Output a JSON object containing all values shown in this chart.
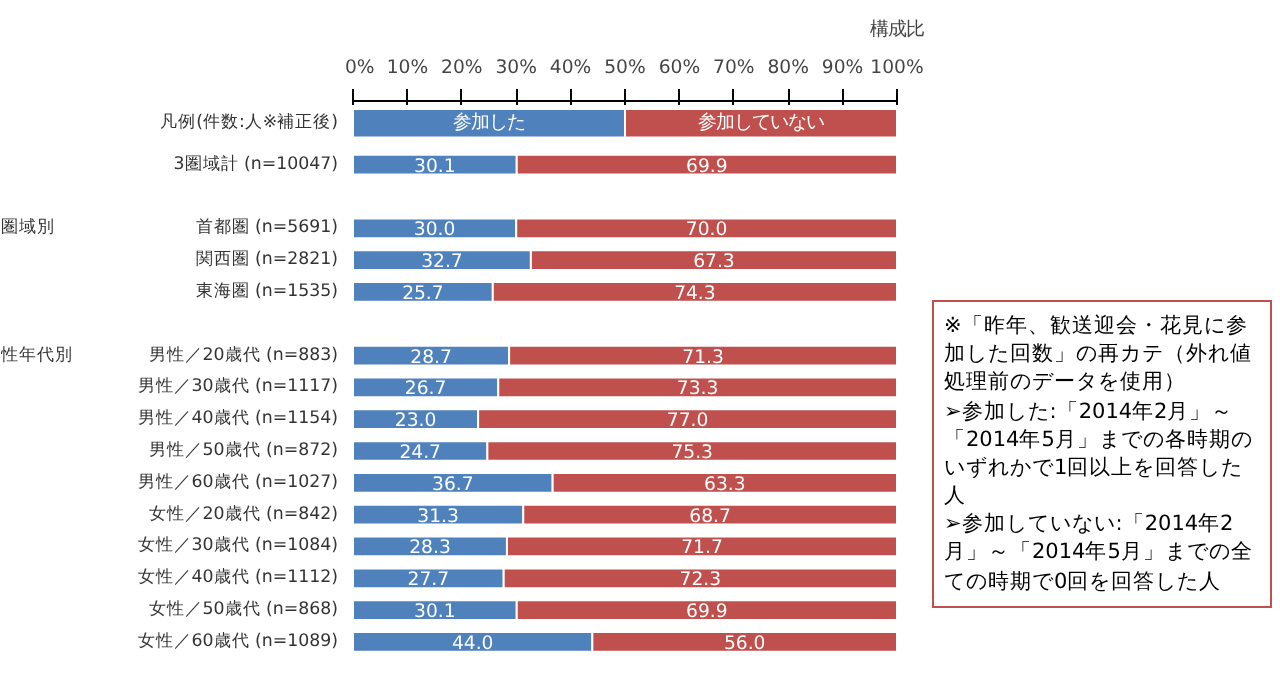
{
  "chart_data": {
    "type": "bar",
    "orientation": "horizontal",
    "stacked": true,
    "xlabel": "構成比",
    "legend_title": "凡例(件数:人※補正後)",
    "legend": "top",
    "categories": [
      "3圏域計 (n=10047)",
      null,
      "首都圏 (n=5691)",
      "関西圏 (n=2821)",
      "東海圏 (n=1535)",
      null,
      "男性／20歳代 (n=883)",
      "男性／30歳代 (n=1117)",
      "男性／40歳代 (n=1154)",
      "男性／50歳代 (n=872)",
      "男性／60歳代 (n=1027)",
      "女性／20歳代 (n=842)",
      "女性／30歳代 (n=1084)",
      "女性／40歳代 (n=1112)",
      "女性／50歳代 (n=868)",
      "女性／60歳代 (n=1089)"
    ],
    "series": [
      {
        "name": "参加した",
        "color": "#4f81bd",
        "values": [
          30.1,
          null,
          30.0,
          32.7,
          25.7,
          null,
          28.7,
          26.7,
          23.0,
          24.7,
          36.7,
          31.3,
          28.3,
          27.7,
          30.1,
          44.0
        ],
        "value_labels": [
          "30.1",
          null,
          "30.0",
          "32.7",
          "25.7",
          null,
          "28.7",
          "26.7",
          "23.0",
          "24.7",
          "36.7",
          "31.3",
          "28.3",
          "27.7",
          "30.1",
          "44.0"
        ]
      },
      {
        "name": "参加していない",
        "color": "#c0504d",
        "values": [
          69.9,
          null,
          70.0,
          67.3,
          74.3,
          null,
          71.3,
          73.3,
          77.0,
          75.3,
          63.3,
          68.7,
          71.7,
          72.3,
          69.9,
          56.0
        ],
        "value_labels": [
          "69.9",
          null,
          "70.0",
          "67.3",
          "74.3",
          null,
          "71.3",
          "73.3",
          "77.0",
          "75.3",
          "63.3",
          "68.7",
          "71.7",
          "72.3",
          "69.9",
          "56.0"
        ]
      }
    ],
    "xlim": [
      0,
      100
    ],
    "xticks": [
      {
        "value": 0,
        "label": "0%"
      },
      {
        "value": 10,
        "label": "10%"
      },
      {
        "value": 20,
        "label": "20%"
      },
      {
        "value": 30,
        "label": "30%"
      },
      {
        "value": 40,
        "label": "40%"
      },
      {
        "value": 50,
        "label": "50%"
      },
      {
        "value": 60,
        "label": "60%"
      },
      {
        "value": 70,
        "label": "70%"
      },
      {
        "value": 80,
        "label": "80%"
      },
      {
        "value": 90,
        "label": "90%"
      },
      {
        "value": 100,
        "label": "100%"
      }
    ],
    "grid": false,
    "annotations": [
      "圏域別",
      "性年代別",
      "※「昨年、歓送迎会・花見に参加した回数」の再カテ（外れ値処理前のデータを使用）\n➢参加した:「2014年2月」～「2014年5月」までの各時期のいずれかで1回以上を回答した人\n➢参加していない:「2014年2月」～「2014年5月」までの全ての時期で0回を回答した人"
    ]
  }
}
